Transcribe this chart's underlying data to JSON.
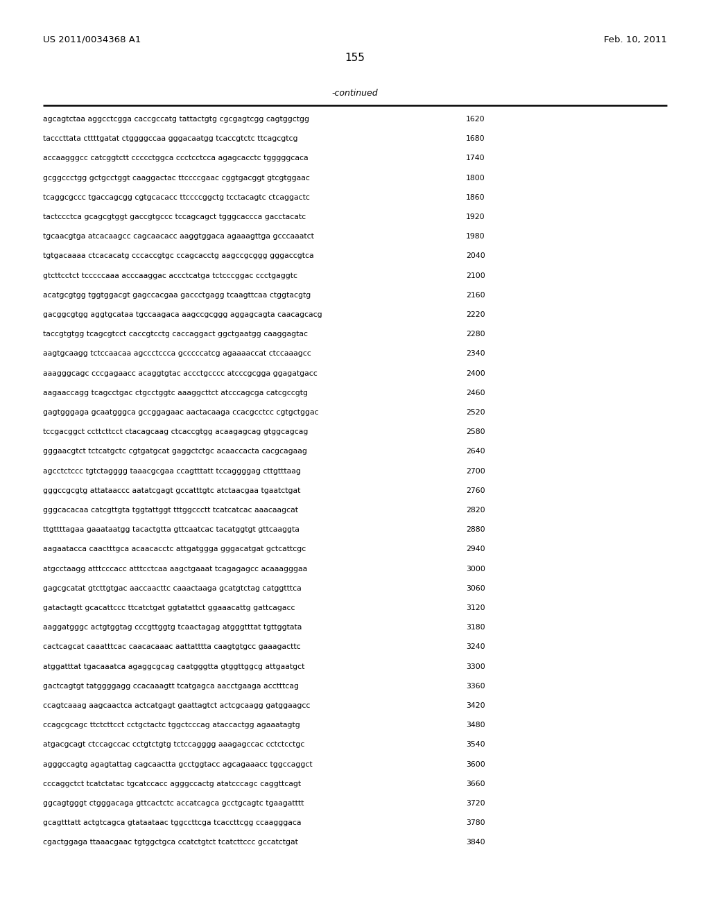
{
  "header_left": "US 2011/0034368 A1",
  "header_right": "Feb. 10, 2011",
  "page_number": "155",
  "continued_label": "-continued",
  "background_color": "#ffffff",
  "text_color": "#000000",
  "sequence_lines": [
    [
      "agcagtctaa aggcctcgga caccgccatg tattactgtg cgcgagtcgg cagtggctgg",
      "1620"
    ],
    [
      "tacccttata cttttgatat ctggggccaa gggacaatgg tcaccgtctc ttcagcgtcg",
      "1680"
    ],
    [
      "accaagggcc catcggtctt ccccctggca ccctcctcca agagcacctc tgggggcaca",
      "1740"
    ],
    [
      "gcggccctgg gctgcctggt caaggactac ttccccgaac cggtgacggt gtcgtggaac",
      "1800"
    ],
    [
      "tcaggcgccc tgaccagcgg cgtgcacacc ttccccggctg tcctacagtc ctcaggactc",
      "1860"
    ],
    [
      "tactccctca gcagcgtggt gaccgtgccc tccagcagct tgggcaccca gacctacatc",
      "1920"
    ],
    [
      "tgcaacgtga atcacaagcc cagcaacacc aaggtggaca agaaagttga gcccaaatct",
      "1980"
    ],
    [
      "tgtgacaaaa ctcacacatg cccaccgtgc ccagcacctg aagccgcggg gggaccgtca",
      "2040"
    ],
    [
      "gtcttcctct tcccccaaa acccaaggac accctcatga tctcccggac ccctgaggtc",
      "2100"
    ],
    [
      "acatgcgtgg tggtggacgt gagccacgaa gaccctgagg tcaagttcaa ctggtacgtg",
      "2160"
    ],
    [
      "gacggcgtgg aggtgcataa tgccaagaca aagccgcggg aggagcagta caacagcacg",
      "2220"
    ],
    [
      "taccgtgtgg tcagcgtcct caccgtcctg caccaggact ggctgaatgg caaggagtac",
      "2280"
    ],
    [
      "aagtgcaagg tctccaacaa agccctccca gcccccatcg agaaaaccat ctccaaagcc",
      "2340"
    ],
    [
      "aaagggcagc cccgagaacc acaggtgtac accctgcccc atcccgcgga ggagatgacc",
      "2400"
    ],
    [
      "aagaaccagg tcagcctgac ctgcctggtc aaaggcttct atcccagcga catcgccgtg",
      "2460"
    ],
    [
      "gagtgggaga gcaatgggca gccggagaac aactacaaga ccacgcctcc cgtgctggac",
      "2520"
    ],
    [
      "tccgacggct ccttcttcct ctacagcaag ctcaccgtgg acaagagcag gtggcagcag",
      "2580"
    ],
    [
      "gggaacgtct tctcatgctc cgtgatgcat gaggctctgc acaaccacta cacgcagaag",
      "2640"
    ],
    [
      "agcctctccc tgtctagggg taaacgcgaa ccagtttatt tccaggggag cttgtttaag",
      "2700"
    ],
    [
      "gggccgcgtg attataaccc aatatcgagt gccatttgtc atctaacgaa tgaatctgat",
      "2760"
    ],
    [
      "gggcacacaa catcgttgta tggtattggt tttggccctt tcatcatcac aaacaagcat",
      "2820"
    ],
    [
      "ttgttttagaa gaaataatgg tacactgtta gttcaatcac tacatggtgt gttcaaggta",
      "2880"
    ],
    [
      "aagaatacca caactttgca acaacacctc attgatggga gggacatgat gctcattcgc",
      "2940"
    ],
    [
      "atgcctaagg atttcccacc atttcctcaa aagctgaaat tcagagagcc acaaagggaa",
      "3000"
    ],
    [
      "gagcgcatat gtcttgtgac aaccaacttc caaactaaga gcatgtctag catggtttca",
      "3060"
    ],
    [
      "gatactagtt gcacattccc ttcatctgat ggtatattct ggaaacattg gattcagacc",
      "3120"
    ],
    [
      "aaggatgggc actgtggtag cccgttggtg tcaactagag atgggtttat tgttggtata",
      "3180"
    ],
    [
      "cactcagcat caaatttcac caacacaaac aattatttta caagtgtgcc gaaagacttc",
      "3240"
    ],
    [
      "atggatttat tgacaaatca agaggcgcag caatgggtta gtggttggcg attgaatgct",
      "3300"
    ],
    [
      "gactcagtgt tatggggagg ccacaaagtt tcatgagca aacctgaaga acctttcag",
      "3360"
    ],
    [
      "ccagtcaaag aagcaactca actcatgagt gaattagtct actcgcaagg gatggaagcc",
      "3420"
    ],
    [
      "ccagcgcagc ttctcttcct cctgctactc tggctcccag ataccactgg agaaatagtg",
      "3480"
    ],
    [
      "atgacgcagt ctccagccac cctgtctgtg tctccagggg aaagagccac cctctcctgc",
      "3540"
    ],
    [
      "agggccagtg agagtattag cagcaactta gcctggtacc agcagaaacc tggccaggct",
      "3600"
    ],
    [
      "cccaggctct tcatctatac tgcatccacc agggccactg atatcccagc caggttcagt",
      "3660"
    ],
    [
      "ggcagtgggt ctgggacaga gttcactctc accatcagca gcctgcagtc tgaagatttt",
      "3720"
    ],
    [
      "gcagtttatt actgtcagca gtataataac tggccttcga tcaccttcgg ccaagggaca",
      "3780"
    ],
    [
      "cgactggaga ttaaacgaac tgtggctgca ccatctgtct tcatcttccc gccatctgat",
      "3840"
    ]
  ]
}
